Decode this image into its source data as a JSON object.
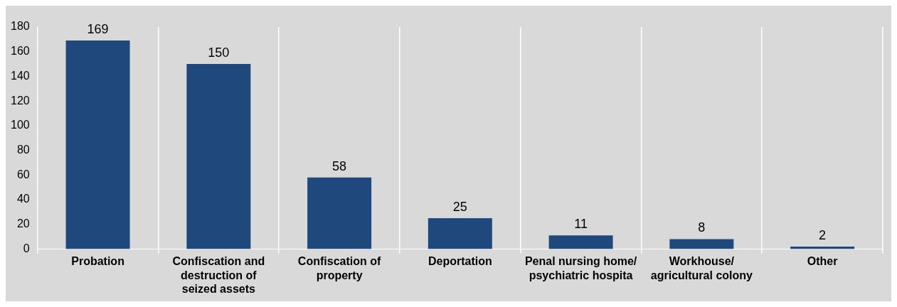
{
  "chart_data": {
    "type": "bar",
    "categories": [
      "Probation",
      "Confiscation and destruction of seized assets",
      "Confiscation of property",
      "Deportation",
      "Penal nursing home/ psychiatric hospita",
      "Workhouse/ agricultural colony",
      "Other"
    ],
    "values": [
      169,
      150,
      58,
      25,
      11,
      8,
      2
    ],
    "color": "#1f497d",
    "ylim": [
      0,
      180
    ],
    "yticks": [
      0,
      20,
      40,
      60,
      80,
      100,
      120,
      140,
      160,
      180
    ],
    "grid": "x",
    "data_labels": true
  }
}
